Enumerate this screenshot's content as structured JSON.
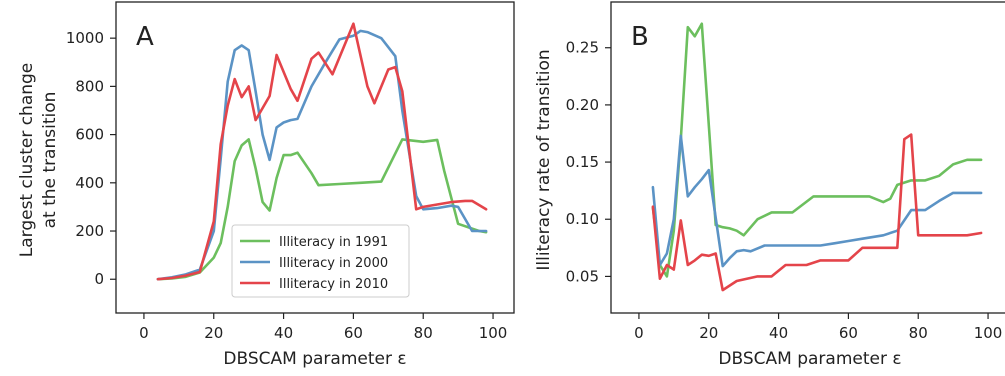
{
  "colors": {
    "1991": "#6cbf5e",
    "2000": "#5b93c5",
    "2010": "#e4444a"
  },
  "chart_data": [
    {
      "type": "line",
      "panel_label": "A",
      "xlabel": "DBSCAM parameter ε",
      "ylabel_lines": [
        "Largest cluster change",
        "at the transition"
      ],
      "xlim": [
        -8,
        106
      ],
      "ylim": [
        -140,
        1150
      ],
      "xticks": [
        0,
        20,
        40,
        60,
        80,
        100
      ],
      "yticks": [
        0,
        200,
        400,
        600,
        800,
        1000
      ],
      "legend": {
        "position": "lower-center",
        "entries": [
          "Illiteracy in 1991",
          "Illiteracy in 2000",
          "Illiteracy in 2010"
        ]
      },
      "series": [
        {
          "name": "Illiteracy in 1991",
          "key": "1991",
          "x": [
            4,
            8,
            12,
            16,
            20,
            22,
            24,
            26,
            28,
            30,
            32,
            34,
            36,
            38,
            40,
            42,
            44,
            48,
            50,
            56,
            62,
            68,
            74,
            80,
            84,
            86,
            90,
            96,
            98
          ],
          "y": [
            0,
            3,
            10,
            28,
            90,
            150,
            300,
            490,
            555,
            580,
            460,
            320,
            285,
            420,
            515,
            515,
            525,
            440,
            390,
            395,
            400,
            405,
            580,
            570,
            578,
            450,
            230,
            200,
            195
          ]
        },
        {
          "name": "Illiteracy in 2000",
          "key": "2000",
          "x": [
            4,
            8,
            12,
            16,
            20,
            22,
            24,
            26,
            28,
            30,
            32,
            34,
            36,
            38,
            40,
            42,
            44,
            48,
            52,
            56,
            60,
            62,
            64,
            68,
            72,
            74,
            78,
            80,
            84,
            88,
            90,
            94,
            98
          ],
          "y": [
            0,
            8,
            20,
            40,
            200,
            500,
            820,
            950,
            970,
            950,
            780,
            600,
            495,
            630,
            650,
            660,
            665,
            800,
            900,
            995,
            1010,
            1030,
            1025,
            1000,
            925,
            700,
            345,
            290,
            295,
            305,
            300,
            200,
            200
          ]
        },
        {
          "name": "Illiteracy in 2010",
          "key": "2010",
          "x": [
            4,
            8,
            12,
            16,
            20,
            22,
            24,
            26,
            28,
            30,
            32,
            36,
            38,
            40,
            42,
            44,
            48,
            50,
            54,
            58,
            60,
            64,
            66,
            70,
            72,
            74,
            78,
            80,
            84,
            88,
            92,
            94,
            98
          ],
          "y": [
            0,
            5,
            15,
            30,
            240,
            560,
            720,
            830,
            755,
            800,
            660,
            760,
            930,
            860,
            790,
            740,
            915,
            940,
            850,
            990,
            1060,
            800,
            730,
            870,
            880,
            780,
            290,
            300,
            310,
            320,
            325,
            325,
            290
          ]
        }
      ]
    },
    {
      "type": "line",
      "panel_label": "B",
      "xlabel": "DBSCAM parameter ε",
      "ylabel_lines": [
        "Illiteracy rate of transition"
      ],
      "xlim": [
        -8,
        106
      ],
      "ylim": [
        0.018,
        0.29
      ],
      "xticks": [
        0,
        20,
        40,
        60,
        80,
        100
      ],
      "yticks": [
        0.05,
        0.1,
        0.15,
        0.2,
        0.25
      ],
      "ytick_labels": [
        "0.05",
        "0.10",
        "0.15",
        "0.20",
        "0.25"
      ],
      "series": [
        {
          "name": "Illiteracy in 1991",
          "key": "1991",
          "x": [
            4,
            6,
            8,
            10,
            12,
            14,
            16,
            18,
            22,
            24,
            26,
            28,
            30,
            34,
            38,
            44,
            50,
            56,
            62,
            66,
            70,
            72,
            74,
            78,
            82,
            86,
            90,
            94,
            98
          ],
          "y": [
            0.11,
            0.06,
            0.05,
            0.09,
            0.17,
            0.268,
            0.26,
            0.271,
            0.095,
            0.093,
            0.092,
            0.09,
            0.086,
            0.1,
            0.106,
            0.106,
            0.12,
            0.12,
            0.12,
            0.12,
            0.115,
            0.118,
            0.13,
            0.134,
            0.134,
            0.138,
            0.148,
            0.152,
            0.152
          ]
        },
        {
          "name": "Illiteracy in 2000",
          "key": "2000",
          "x": [
            4,
            6,
            8,
            10,
            12,
            14,
            16,
            18,
            20,
            24,
            26,
            28,
            30,
            32,
            36,
            40,
            44,
            48,
            52,
            56,
            60,
            64,
            70,
            74,
            78,
            82,
            86,
            90,
            94,
            98
          ],
          "y": [
            0.128,
            0.06,
            0.07,
            0.1,
            0.173,
            0.12,
            0.128,
            0.135,
            0.143,
            0.059,
            0.066,
            0.072,
            0.073,
            0.072,
            0.077,
            0.077,
            0.077,
            0.077,
            0.077,
            0.079,
            0.081,
            0.083,
            0.086,
            0.09,
            0.108,
            0.108,
            0.116,
            0.123,
            0.123,
            0.123
          ]
        },
        {
          "name": "Illiteracy in 2010",
          "key": "2010",
          "x": [
            4,
            6,
            8,
            10,
            12,
            14,
            16,
            18,
            20,
            22,
            24,
            28,
            34,
            38,
            42,
            48,
            52,
            56,
            60,
            64,
            68,
            72,
            74,
            76,
            78,
            80,
            84,
            88,
            92,
            94,
            98
          ],
          "y": [
            0.111,
            0.048,
            0.06,
            0.056,
            0.099,
            0.06,
            0.064,
            0.069,
            0.068,
            0.07,
            0.038,
            0.046,
            0.05,
            0.05,
            0.06,
            0.06,
            0.064,
            0.064,
            0.064,
            0.075,
            0.075,
            0.075,
            0.075,
            0.17,
            0.174,
            0.086,
            0.086,
            0.086,
            0.086,
            0.086,
            0.088
          ]
        }
      ]
    }
  ]
}
